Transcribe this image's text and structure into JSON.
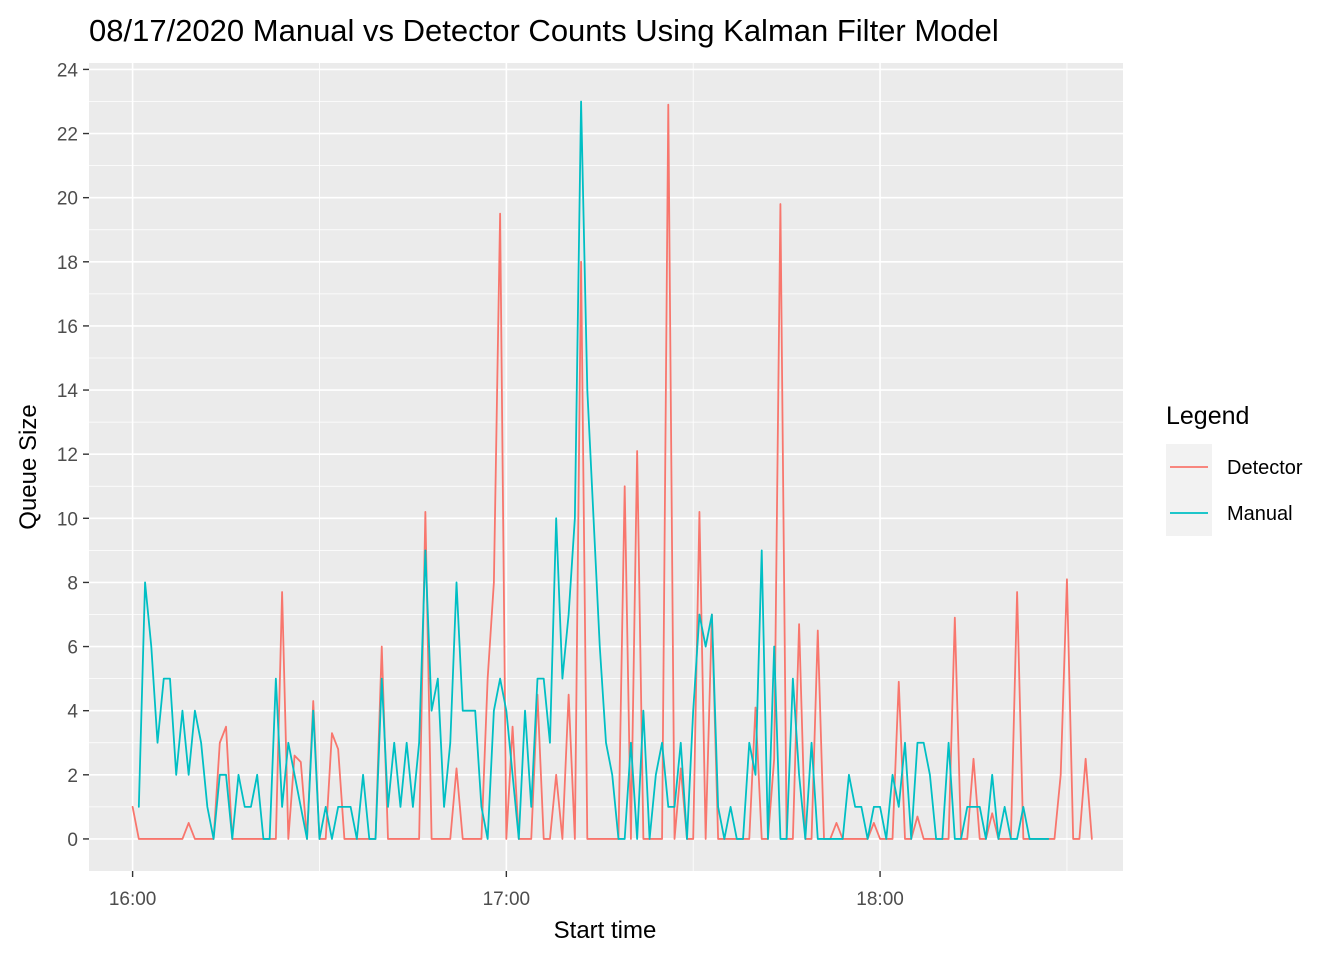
{
  "chart_data": {
    "type": "line",
    "title": "08/17/2020 Manual vs Detector Counts Using Kalman Filter Model",
    "xlabel": "Start time",
    "ylabel": "Queue Size",
    "x_unit": "minutes",
    "xlim": [
      "15:53",
      "18:39"
    ],
    "ylim": [
      -1,
      24.2
    ],
    "x_ticks": [
      {
        "label": "16:00",
        "value": 0
      },
      {
        "label": "17:00",
        "value": 60
      },
      {
        "label": "18:00",
        "value": 120
      }
    ],
    "x_minor_ticks": [
      30,
      90,
      150
    ],
    "y_ticks": [
      0,
      2,
      4,
      6,
      8,
      10,
      12,
      14,
      16,
      18,
      20,
      22,
      24
    ],
    "grid": true,
    "legend": {
      "title": "Legend",
      "position": "right"
    },
    "series": [
      {
        "name": "Detector",
        "color": "#F8766D",
        "points": [
          [
            0,
            1
          ],
          [
            1,
            0
          ],
          [
            2,
            0
          ],
          [
            3,
            0
          ],
          [
            4,
            0
          ],
          [
            5,
            0
          ],
          [
            6,
            0
          ],
          [
            7,
            0
          ],
          [
            8,
            0
          ],
          [
            9,
            0.5
          ],
          [
            10,
            0
          ],
          [
            11,
            0
          ],
          [
            12,
            0
          ],
          [
            13,
            0
          ],
          [
            14,
            3
          ],
          [
            15,
            3.5
          ],
          [
            16,
            0
          ],
          [
            17,
            0
          ],
          [
            18,
            0
          ],
          [
            19,
            0
          ],
          [
            20,
            0
          ],
          [
            21,
            0
          ],
          [
            22,
            0
          ],
          [
            23,
            0
          ],
          [
            24,
            7.7
          ],
          [
            25,
            0
          ],
          [
            26,
            2.6
          ],
          [
            27,
            2.4
          ],
          [
            28,
            0
          ],
          [
            29,
            4.3
          ],
          [
            30,
            0
          ],
          [
            31,
            0
          ],
          [
            32,
            3.3
          ],
          [
            33,
            2.8
          ],
          [
            34,
            0
          ],
          [
            35,
            0
          ],
          [
            36,
            0
          ],
          [
            37,
            0
          ],
          [
            38,
            0
          ],
          [
            39,
            0
          ],
          [
            40,
            6
          ],
          [
            41,
            0
          ],
          [
            42,
            0
          ],
          [
            43,
            0
          ],
          [
            44,
            0
          ],
          [
            45,
            0
          ],
          [
            46,
            0
          ],
          [
            47,
            10.2
          ],
          [
            48,
            0
          ],
          [
            49,
            0
          ],
          [
            50,
            0
          ],
          [
            51,
            0
          ],
          [
            52,
            2.2
          ],
          [
            53,
            0
          ],
          [
            54,
            0
          ],
          [
            55,
            0
          ],
          [
            56,
            0
          ],
          [
            57,
            5
          ],
          [
            58,
            8
          ],
          [
            59,
            19.5
          ],
          [
            60,
            0
          ],
          [
            61,
            3.5
          ],
          [
            62,
            0
          ],
          [
            63,
            0
          ],
          [
            64,
            0
          ],
          [
            65,
            4.5
          ],
          [
            66,
            0
          ],
          [
            67,
            0
          ],
          [
            68,
            2
          ],
          [
            69,
            0
          ],
          [
            70,
            4.5
          ],
          [
            71,
            0
          ],
          [
            72,
            18
          ],
          [
            73,
            0
          ],
          [
            74,
            0
          ],
          [
            75,
            0
          ],
          [
            76,
            0
          ],
          [
            77,
            0
          ],
          [
            78,
            0
          ],
          [
            79,
            11
          ],
          [
            80,
            0
          ],
          [
            81,
            12.1
          ],
          [
            82,
            0
          ],
          [
            83,
            0
          ],
          [
            84,
            0
          ],
          [
            85,
            0
          ],
          [
            86,
            22.9
          ],
          [
            87,
            0
          ],
          [
            88,
            2.2
          ],
          [
            89,
            0
          ],
          [
            90,
            0
          ],
          [
            91,
            10.2
          ],
          [
            92,
            0
          ],
          [
            93,
            7
          ],
          [
            94,
            0
          ],
          [
            95,
            0
          ],
          [
            96,
            0
          ],
          [
            97,
            0
          ],
          [
            98,
            0
          ],
          [
            99,
            0
          ],
          [
            100,
            4.1
          ],
          [
            101,
            0
          ],
          [
            102,
            0
          ],
          [
            103,
            2.5
          ],
          [
            104,
            19.8
          ],
          [
            105,
            0
          ],
          [
            106,
            0
          ],
          [
            107,
            6.7
          ],
          [
            108,
            0
          ],
          [
            109,
            0
          ],
          [
            110,
            6.5
          ],
          [
            111,
            0
          ],
          [
            112,
            0
          ],
          [
            113,
            0.5
          ],
          [
            114,
            0
          ],
          [
            115,
            0
          ],
          [
            116,
            0
          ],
          [
            117,
            0
          ],
          [
            118,
            0
          ],
          [
            119,
            0.5
          ],
          [
            120,
            0
          ],
          [
            121,
            0
          ],
          [
            122,
            0
          ],
          [
            123,
            4.9
          ],
          [
            124,
            0
          ],
          [
            125,
            0
          ],
          [
            126,
            0.7
          ],
          [
            127,
            0
          ],
          [
            128,
            0
          ],
          [
            129,
            0
          ],
          [
            130,
            0
          ],
          [
            131,
            0
          ],
          [
            132,
            6.9
          ],
          [
            133,
            0
          ],
          [
            134,
            0
          ],
          [
            135,
            2.5
          ],
          [
            136,
            0
          ],
          [
            137,
            0
          ],
          [
            138,
            0.8
          ],
          [
            139,
            0
          ],
          [
            140,
            0
          ],
          [
            141,
            0
          ],
          [
            142,
            7.7
          ],
          [
            143,
            0
          ],
          [
            144,
            0
          ],
          [
            145,
            0
          ],
          [
            146,
            0
          ],
          [
            147,
            0
          ],
          [
            148,
            0
          ],
          [
            149,
            2
          ],
          [
            150,
            8.1
          ],
          [
            151,
            0
          ],
          [
            152,
            0
          ],
          [
            153,
            2.5
          ],
          [
            154,
            0
          ]
        ]
      },
      {
        "name": "Manual",
        "color": "#00BFC4",
        "points": [
          [
            1,
            1
          ],
          [
            2,
            8
          ],
          [
            3,
            6
          ],
          [
            4,
            3
          ],
          [
            5,
            5
          ],
          [
            6,
            5
          ],
          [
            7,
            2
          ],
          [
            8,
            4
          ],
          [
            9,
            2
          ],
          [
            10,
            4
          ],
          [
            11,
            3
          ],
          [
            12,
            1
          ],
          [
            13,
            0
          ],
          [
            14,
            2
          ],
          [
            15,
            2
          ],
          [
            16,
            0
          ],
          [
            17,
            2
          ],
          [
            18,
            1
          ],
          [
            19,
            1
          ],
          [
            20,
            2
          ],
          [
            21,
            0
          ],
          [
            22,
            0
          ],
          [
            23,
            5
          ],
          [
            24,
            1
          ],
          [
            25,
            3
          ],
          [
            26,
            2
          ],
          [
            27,
            1
          ],
          [
            28,
            0
          ],
          [
            29,
            4
          ],
          [
            30,
            0
          ],
          [
            31,
            1
          ],
          [
            32,
            0
          ],
          [
            33,
            1
          ],
          [
            34,
            1
          ],
          [
            35,
            1
          ],
          [
            36,
            0
          ],
          [
            37,
            2
          ],
          [
            38,
            0
          ],
          [
            39,
            0
          ],
          [
            40,
            5
          ],
          [
            41,
            1
          ],
          [
            42,
            3
          ],
          [
            43,
            1
          ],
          [
            44,
            3
          ],
          [
            45,
            1
          ],
          [
            46,
            3
          ],
          [
            47,
            9
          ],
          [
            48,
            4
          ],
          [
            49,
            5
          ],
          [
            50,
            1
          ],
          [
            51,
            3
          ],
          [
            52,
            8
          ],
          [
            53,
            4
          ],
          [
            54,
            4
          ],
          [
            55,
            4
          ],
          [
            56,
            1
          ],
          [
            57,
            0
          ],
          [
            58,
            4
          ],
          [
            59,
            5
          ],
          [
            60,
            4
          ],
          [
            61,
            2
          ],
          [
            62,
            0
          ],
          [
            63,
            4
          ],
          [
            64,
            1
          ],
          [
            65,
            5
          ],
          [
            66,
            5
          ],
          [
            67,
            3
          ],
          [
            68,
            10
          ],
          [
            69,
            5
          ],
          [
            70,
            7
          ],
          [
            71,
            10
          ],
          [
            72,
            23
          ],
          [
            73,
            14
          ],
          [
            74,
            10
          ],
          [
            75,
            6
          ],
          [
            76,
            3
          ],
          [
            77,
            2
          ],
          [
            78,
            0
          ],
          [
            79,
            0
          ],
          [
            80,
            3
          ],
          [
            81,
            0
          ],
          [
            82,
            4
          ],
          [
            83,
            0
          ],
          [
            84,
            2
          ],
          [
            85,
            3
          ],
          [
            86,
            1
          ],
          [
            87,
            1
          ],
          [
            88,
            3
          ],
          [
            89,
            0
          ],
          [
            90,
            4
          ],
          [
            91,
            7
          ],
          [
            92,
            6
          ],
          [
            93,
            7
          ],
          [
            94,
            1
          ],
          [
            95,
            0
          ],
          [
            96,
            1
          ],
          [
            97,
            0
          ],
          [
            98,
            0
          ],
          [
            99,
            3
          ],
          [
            100,
            2
          ],
          [
            101,
            9
          ],
          [
            102,
            0
          ],
          [
            103,
            6
          ],
          [
            104,
            0
          ],
          [
            105,
            0
          ],
          [
            106,
            5
          ],
          [
            107,
            2
          ],
          [
            108,
            0
          ],
          [
            109,
            3
          ],
          [
            110,
            0
          ],
          [
            111,
            0
          ],
          [
            112,
            0
          ],
          [
            113,
            0
          ],
          [
            114,
            0
          ],
          [
            115,
            2
          ],
          [
            116,
            1
          ],
          [
            117,
            1
          ],
          [
            118,
            0
          ],
          [
            119,
            1
          ],
          [
            120,
            1
          ],
          [
            121,
            0
          ],
          [
            122,
            2
          ],
          [
            123,
            1
          ],
          [
            124,
            3
          ],
          [
            125,
            0
          ],
          [
            126,
            3
          ],
          [
            127,
            3
          ],
          [
            128,
            2
          ],
          [
            129,
            0
          ],
          [
            130,
            0
          ],
          [
            131,
            3
          ],
          [
            132,
            0
          ],
          [
            133,
            0
          ],
          [
            134,
            1
          ],
          [
            135,
            1
          ],
          [
            136,
            1
          ],
          [
            137,
            0
          ],
          [
            138,
            2
          ],
          [
            139,
            0
          ],
          [
            140,
            1
          ],
          [
            141,
            0
          ],
          [
            142,
            0
          ],
          [
            143,
            1
          ],
          [
            144,
            0
          ],
          [
            145,
            0
          ],
          [
            146,
            0
          ],
          [
            147,
            0
          ]
        ]
      }
    ]
  }
}
